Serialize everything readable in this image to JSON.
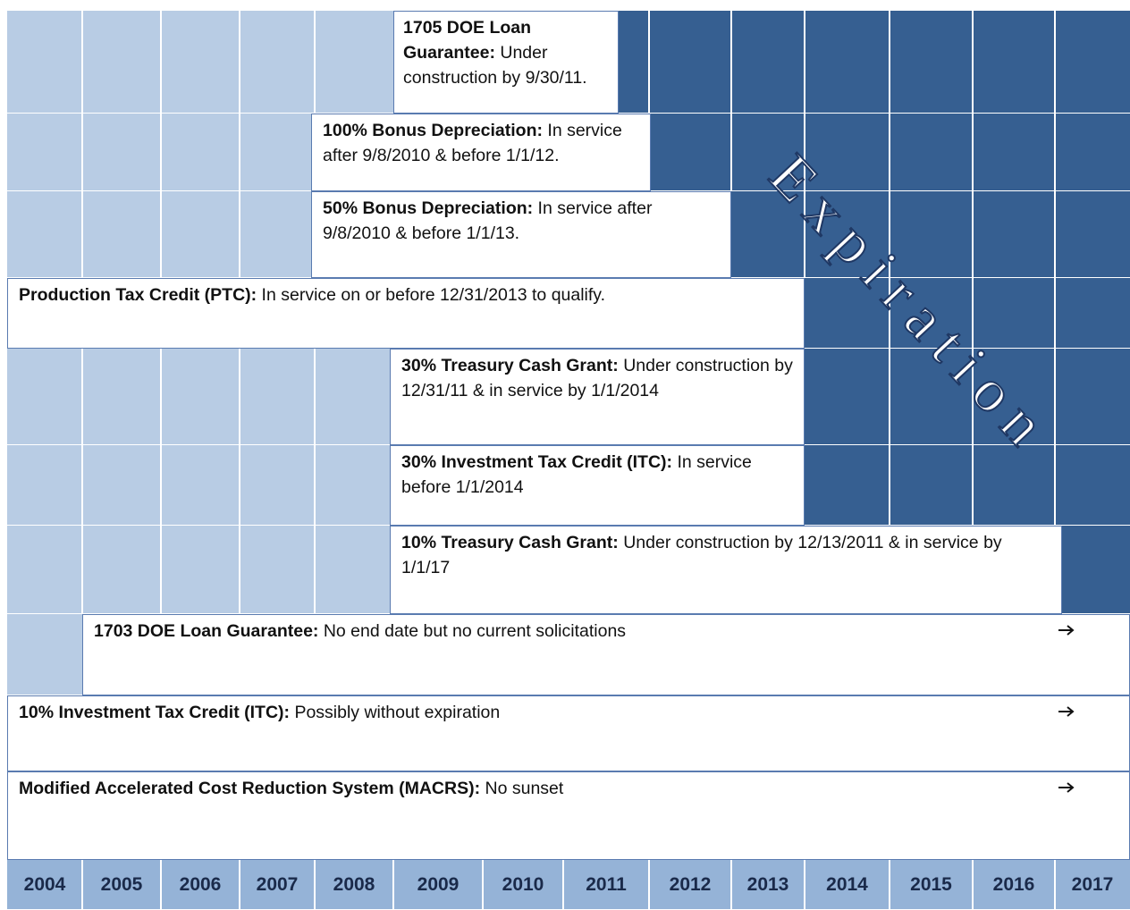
{
  "rows": [
    {
      "label": "1705 DOE Loan Guarantee:",
      "text": "Under construction by 9/30/11."
    },
    {
      "label": "100% Bonus Depreciation:",
      "text": "In service after 9/8/2010 & before 1/1/12."
    },
    {
      "label": "50% Bonus Depreciation:",
      "text": "In service after 9/8/2010 & before 1/1/13."
    },
    {
      "label": "Production Tax Credit (PTC):",
      "text": "In service on or before 12/31/2013 to qualify."
    },
    {
      "label": "30% Treasury Cash Grant:",
      "text": "Under construction by 12/31/11 & in service by 1/1/2014"
    },
    {
      "label": "30% Investment Tax Credit (ITC):",
      "text": "In service before 1/1/2014"
    },
    {
      "label": "10% Treasury Cash Grant:",
      "text": "Under construction by 12/13/2011 & in service by 1/1/17"
    },
    {
      "label": "1703 DOE Loan Guarantee:",
      "text": "No end date but no current solicitations"
    },
    {
      "label": "10% Investment Tax Credit (ITC):",
      "text": "Possibly without expiration"
    },
    {
      "label": "Modified Accelerated Cost Reduction System (MACRS):",
      "text": "No sunset"
    }
  ],
  "watermark": "Expiration",
  "years": [
    "2004",
    "2005",
    "2006",
    "2007",
    "2008",
    "2009",
    "2010",
    "2011",
    "2012",
    "2013",
    "2014",
    "2015",
    "2016",
    "2017"
  ]
}
